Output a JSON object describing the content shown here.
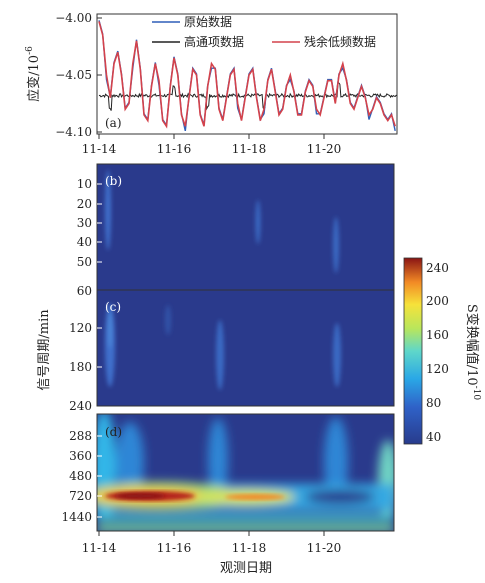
{
  "chart_data": [
    {
      "id": "a",
      "type": "line",
      "panel_label": "(a)",
      "ylabel": "应变/10",
      "ylabel_exp": "-6",
      "ylim": [
        -4.1,
        -4.0
      ],
      "yticks": [
        "−4.00",
        "−4.05",
        "−4.10"
      ],
      "xticks": [
        "11-14",
        "11-16",
        "11-18",
        "11-20"
      ],
      "legend_position": "top-right",
      "series": [
        {
          "name": "原始数据",
          "color": "#2f5fb8"
        },
        {
          "name": "高通项数据",
          "color": "#222222"
        },
        {
          "name": "残余低频数据",
          "color": "#d4424b"
        }
      ],
      "x": [
        14.0,
        14.1,
        14.2,
        14.3,
        14.4,
        14.5,
        14.6,
        14.7,
        14.8,
        14.9,
        15.0,
        15.1,
        15.2,
        15.3,
        15.4,
        15.5,
        15.6,
        15.7,
        15.8,
        15.9,
        16.0,
        16.1,
        16.2,
        16.3,
        16.4,
        16.5,
        16.6,
        16.7,
        16.8,
        16.9,
        17.0,
        17.1,
        17.2,
        17.3,
        17.4,
        17.5,
        17.6,
        17.7,
        17.8,
        17.9,
        18.0,
        18.1,
        18.2,
        18.3,
        18.4,
        18.5,
        18.6,
        18.7,
        18.8,
        18.9,
        19.0,
        19.1,
        19.2,
        19.3,
        19.4,
        19.5,
        19.6,
        19.7,
        19.8,
        19.9,
        20.0,
        20.1,
        20.2,
        20.3,
        20.4,
        20.5,
        20.6,
        20.7,
        20.8,
        20.9,
        21.0,
        21.1,
        21.2,
        21.3,
        21.4,
        21.5,
        21.6,
        21.7,
        21.8,
        21.9
      ],
      "low_freq": [
        -4.003,
        -4.015,
        -4.05,
        -4.07,
        -4.04,
        -4.03,
        -4.05,
        -4.08,
        -4.075,
        -4.04,
        -4.02,
        -4.045,
        -4.085,
        -4.09,
        -4.06,
        -4.04,
        -4.055,
        -4.09,
        -4.095,
        -4.06,
        -4.035,
        -4.05,
        -4.085,
        -4.095,
        -4.07,
        -4.045,
        -4.05,
        -4.085,
        -4.095,
        -4.06,
        -4.04,
        -4.045,
        -4.08,
        -4.09,
        -4.07,
        -4.05,
        -4.045,
        -4.075,
        -4.09,
        -4.07,
        -4.05,
        -4.045,
        -4.07,
        -4.09,
        -4.08,
        -4.055,
        -4.045,
        -4.065,
        -4.085,
        -4.08,
        -4.06,
        -4.05,
        -4.065,
        -4.085,
        -4.085,
        -4.065,
        -4.055,
        -4.06,
        -4.08,
        -4.085,
        -4.07,
        -4.055,
        -4.055,
        -4.075,
        -4.05,
        -4.04,
        -4.055,
        -4.075,
        -4.08,
        -4.07,
        -4.06,
        -4.07,
        -4.085,
        -4.08,
        -4.07,
        -4.075,
        -4.085,
        -4.09,
        -4.085,
        -4.095
      ],
      "high_pass_level": -4.068
    },
    {
      "id": "b",
      "type": "heatmap",
      "panel_label": "(b)",
      "yticks": [
        "10",
        "20",
        "30",
        "40",
        "50"
      ],
      "ylim": [
        60,
        0
      ]
    },
    {
      "id": "c",
      "type": "heatmap",
      "panel_label": "(c)",
      "yticks": [
        "60",
        "120",
        "180",
        "240"
      ],
      "ylim": [
        60,
        240
      ]
    },
    {
      "id": "d",
      "type": "heatmap",
      "panel_label": "(d)",
      "yticks": [
        "288",
        "360",
        "480",
        "720",
        "1440"
      ],
      "xticks": [
        "11-14",
        "11-16",
        "11-18",
        "11-20"
      ],
      "xlabel": "观测日期"
    }
  ],
  "shared_ylabel": "信号周期/min",
  "colorbar": {
    "label": "S变换幅值/10",
    "label_exp": "-10",
    "ticks": [
      "240",
      "200",
      "160",
      "120",
      "80",
      "40"
    ],
    "range": [
      30,
      250
    ]
  }
}
